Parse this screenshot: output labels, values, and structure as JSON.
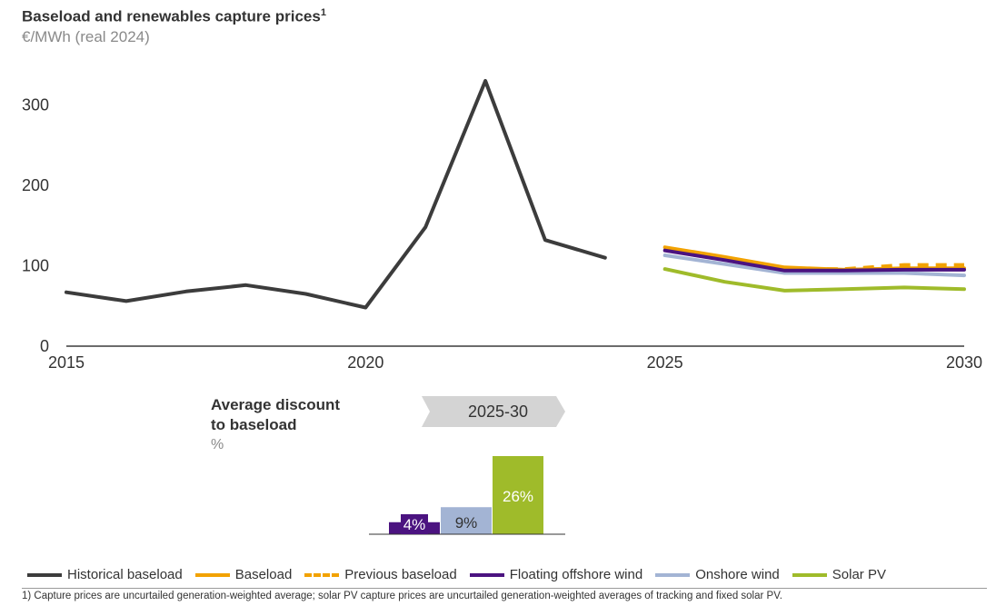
{
  "chart_data": [
    {
      "type": "line",
      "title": "Baseload and renewables capture prices",
      "title_sup": "1",
      "subtitle": "€/MWh (real 2024)",
      "ylim": [
        0,
        330
      ],
      "yticks": [
        0,
        100,
        200,
        300
      ],
      "xlim": [
        2015,
        2030
      ],
      "xticks": [
        2015,
        2020,
        2025,
        2030
      ],
      "grid": false,
      "series": [
        {
          "name": "Historical baseload",
          "color": "#3c3c3c",
          "dash": false,
          "x": [
            2015,
            2016,
            2017,
            2018,
            2019,
            2020,
            2021,
            2022,
            2023,
            2024
          ],
          "y": [
            67,
            56,
            68,
            76,
            65,
            48,
            148,
            330,
            132,
            110
          ]
        },
        {
          "name": "Baseload",
          "color": "#f2a200",
          "dash": false,
          "x": [
            2025,
            2026,
            2027,
            2028,
            2029,
            2030
          ],
          "y": [
            123,
            111,
            98,
            95,
            97,
            97
          ]
        },
        {
          "name": "Previous baseload",
          "color": "#f2a200",
          "dash": true,
          "x": [
            2025,
            2026,
            2027,
            2028,
            2029,
            2030
          ],
          "y": [
            121,
            109,
            96,
            96,
            101,
            101
          ]
        },
        {
          "name": "Floating offshore wind",
          "color": "#4b1380",
          "dash": false,
          "x": [
            2025,
            2026,
            2027,
            2028,
            2029,
            2030
          ],
          "y": [
            119,
            107,
            94,
            94,
            95,
            95
          ]
        },
        {
          "name": "Onshore wind",
          "color": "#a3b4d4",
          "dash": false,
          "x": [
            2025,
            2026,
            2027,
            2028,
            2029,
            2030
          ],
          "y": [
            113,
            102,
            91,
            91,
            91,
            88
          ]
        },
        {
          "name": "Solar PV",
          "color": "#9fbb2a",
          "dash": false,
          "x": [
            2025,
            2026,
            2027,
            2028,
            2029,
            2030
          ],
          "y": [
            96,
            80,
            69,
            71,
            73,
            71
          ]
        }
      ]
    },
    {
      "type": "bar",
      "title": "Average discount to baseload",
      "title_lines": [
        "Average discount",
        "to baseload"
      ],
      "unit": "%",
      "period_label": "2025-30",
      "categories": [
        "Floating offshore wind",
        "Onshore wind",
        "Solar PV"
      ],
      "values": [
        4,
        9,
        26
      ],
      "labels": [
        "4%",
        "9%",
        "26%"
      ],
      "colors": [
        "#4b1380",
        "#a3b4d4",
        "#9fbb2a"
      ],
      "label_colors": [
        "#ffffff",
        "#333333",
        "#ffffff"
      ]
    }
  ],
  "colors": {
    "axis": "#3c3c3c",
    "period_arrow": "#d4d4d4",
    "baseline": "#333333"
  },
  "footnote": "1) Capture prices are uncurtailed generation-weighted average; solar PV capture prices are uncurtailed generation-weighted averages of tracking and fixed solar PV."
}
